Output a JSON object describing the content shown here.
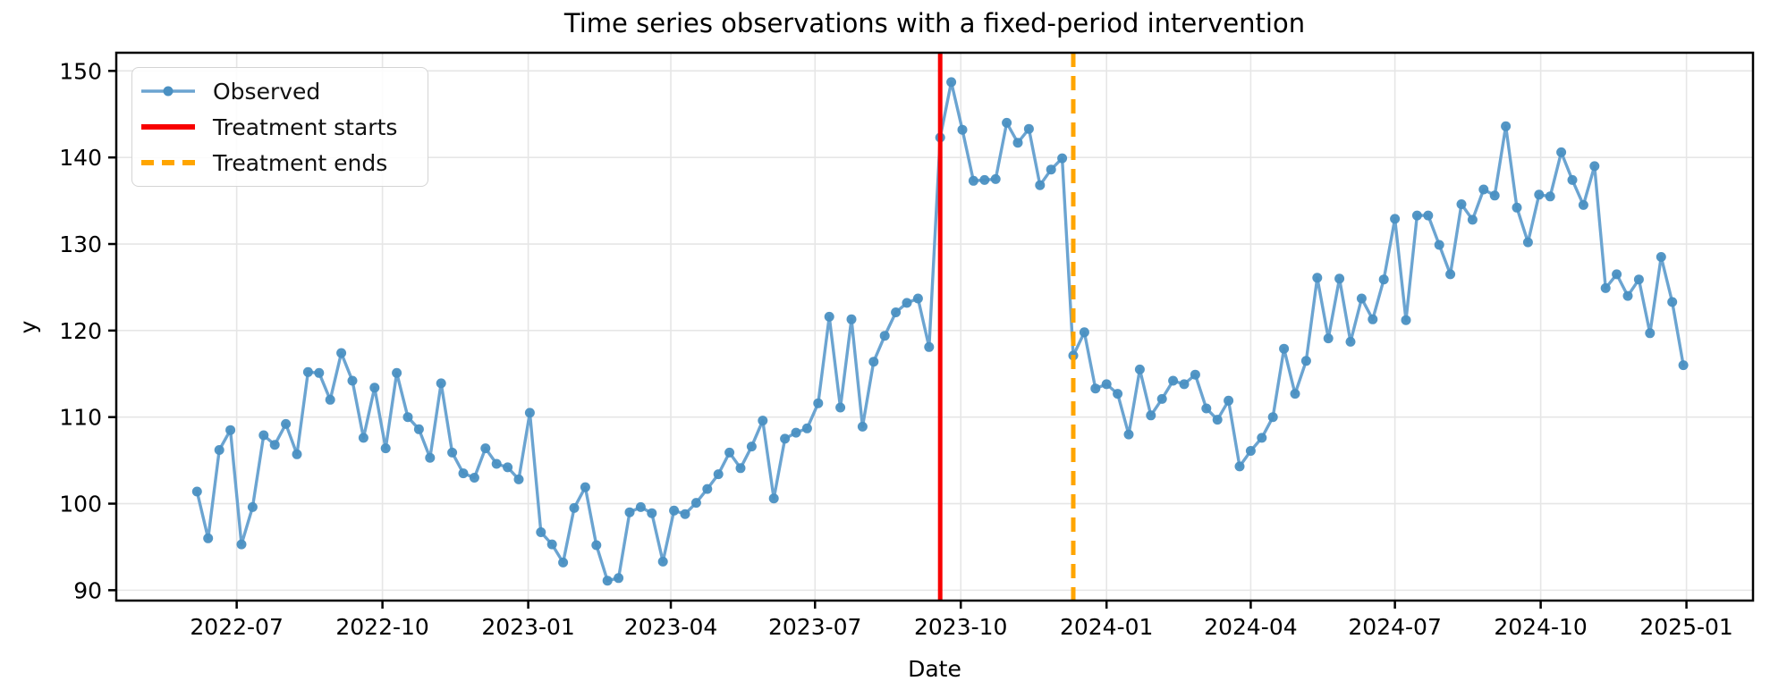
{
  "title": "Time series observations with a fixed-period intervention",
  "xlabel": "Date",
  "ylabel": "y",
  "legend": [
    {
      "label": "Observed",
      "swatch": "line-with-marker",
      "color": "#6BA4D1"
    },
    {
      "label": "Treatment starts",
      "swatch": "solid-line",
      "color": "#F80000"
    },
    {
      "label": "Treatment ends",
      "swatch": "dashed-line",
      "color": "#FFA500"
    }
  ],
  "chart_data": {
    "type": "line",
    "title": "Time series observations with a fixed-period intervention",
    "xlabel": "Date",
    "ylabel": "y",
    "grid": true,
    "legend_position": "upper left",
    "x_start": "2022-06-06",
    "x_freq_days": 7,
    "x_range": [
      "2022-04-16",
      "2025-02-12"
    ],
    "y_range": [
      88.8,
      152.1
    ],
    "x_ticks": [
      "2022-07",
      "2022-10",
      "2023-01",
      "2023-04",
      "2023-07",
      "2023-10",
      "2024-01",
      "2024-04",
      "2024-07",
      "2024-10",
      "2025-01"
    ],
    "y_ticks": [
      90,
      100,
      110,
      120,
      130,
      140,
      150
    ],
    "series": [
      {
        "name": "Observed",
        "line_color": "#6BA4D1",
        "marker_color": "#4A90C2",
        "values": [
          101.4,
          96.0,
          106.2,
          108.5,
          95.3,
          99.6,
          107.9,
          106.8,
          109.2,
          105.7,
          115.2,
          115.1,
          112.0,
          117.4,
          114.2,
          107.6,
          113.4,
          106.4,
          115.1,
          110.0,
          108.6,
          105.3,
          113.9,
          105.9,
          103.5,
          103.0,
          106.4,
          104.6,
          104.2,
          102.8,
          110.5,
          96.7,
          95.3,
          93.2,
          99.5,
          101.9,
          95.2,
          91.1,
          91.4,
          99.0,
          99.6,
          98.9,
          93.3,
          99.2,
          98.8,
          100.1,
          101.7,
          103.4,
          105.9,
          104.1,
          106.6,
          109.6,
          100.6,
          107.5,
          108.2,
          108.7,
          111.6,
          121.6,
          111.1,
          121.3,
          108.9,
          116.4,
          119.4,
          122.1,
          123.2,
          123.7,
          118.1,
          142.3,
          148.7,
          143.2,
          137.3,
          137.4,
          137.5,
          144.0,
          141.7,
          143.3,
          136.8,
          138.6,
          139.9,
          117.1,
          119.8,
          113.3,
          113.8,
          112.7,
          108.0,
          115.5,
          110.2,
          112.1,
          114.2,
          113.8,
          114.9,
          111.0,
          109.7,
          111.9,
          104.3,
          106.1,
          107.6,
          110.0,
          117.9,
          112.7,
          116.5,
          126.1,
          119.1,
          126.0,
          118.7,
          123.7,
          121.3,
          125.9,
          132.9,
          121.2,
          133.3,
          133.3,
          129.9,
          126.5,
          134.6,
          132.8,
          136.3,
          135.6,
          143.6,
          134.2,
          130.2,
          135.7,
          135.5,
          140.6,
          137.4,
          134.5,
          139.0,
          124.9,
          126.5,
          124.0,
          125.9,
          119.7,
          128.5,
          123.3,
          116.0
        ]
      }
    ],
    "vlines": [
      {
        "name": "Treatment starts",
        "date": "2023-09-18",
        "color": "#F80000",
        "style": "solid",
        "width": 5
      },
      {
        "name": "Treatment ends",
        "date": "2023-12-11",
        "color": "#FFA500",
        "style": "dashed",
        "width": 5
      }
    ]
  },
  "style": {
    "grid_color": "#e6e6e6",
    "spine_color": "#000000",
    "text_color": "#000000"
  }
}
